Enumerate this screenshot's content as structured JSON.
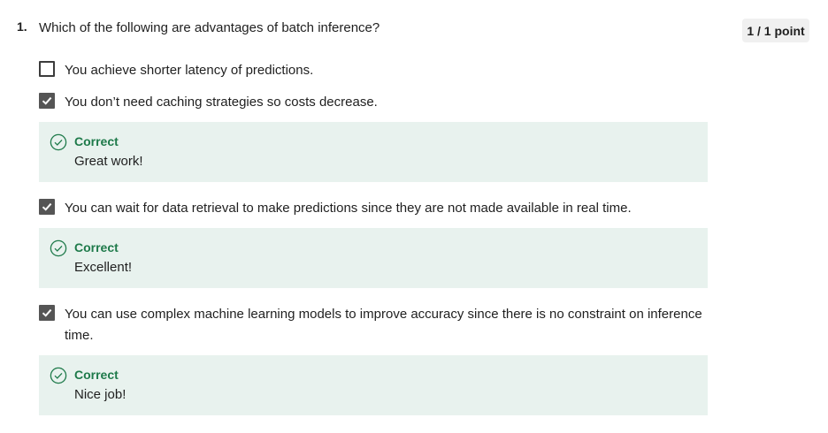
{
  "question": {
    "number": "1.",
    "text": "Which of the following are advantages of batch inference?",
    "points": "1 / 1 point"
  },
  "options": [
    {
      "text": "You achieve shorter latency of predictions.",
      "checked": false
    },
    {
      "text": "You don’t need caching strategies so costs decrease.",
      "checked": true,
      "feedback": {
        "status": "Correct",
        "message": "Great work!"
      }
    },
    {
      "text": "You can wait for data retrieval to make predictions since they are not made available in real time.",
      "checked": true,
      "feedback": {
        "status": "Correct",
        "message": "Excellent!"
      }
    },
    {
      "text": "You can use complex machine learning models to improve accuracy since there is no constraint on inference time.",
      "checked": true,
      "feedback": {
        "status": "Correct",
        "message": "Nice job!"
      }
    }
  ],
  "colors": {
    "correct_text": "#1e7a4a",
    "feedback_bg": "#e8f2ee",
    "checkbox_checked": "#555555",
    "points_bg": "#f0f0f0"
  },
  "icons": {
    "checked": "checkmark-icon",
    "feedback": "check-circle-icon"
  }
}
